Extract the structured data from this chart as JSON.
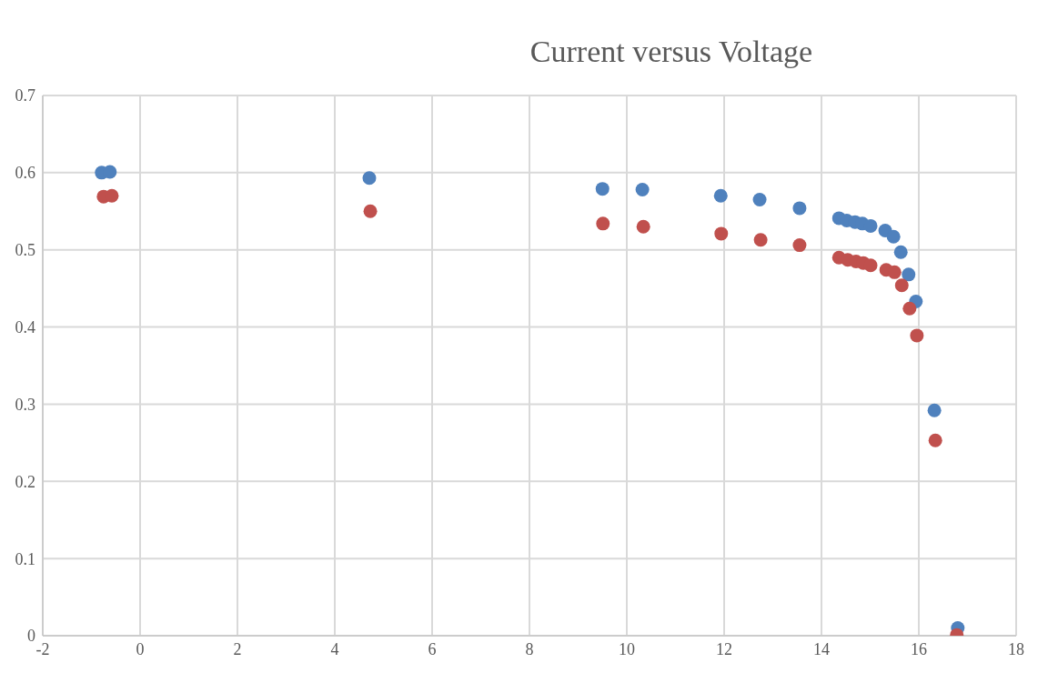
{
  "chart_data": {
    "type": "scatter",
    "title": "Current versus Voltage",
    "xlim": [
      -2,
      18
    ],
    "xticks": [
      -2,
      0,
      2,
      4,
      6,
      8,
      10,
      12,
      14,
      16,
      18
    ],
    "ylim": [
      0,
      0.7
    ],
    "yticks": [
      0,
      0.1,
      0.2,
      0.3,
      0.4,
      0.5,
      0.6,
      0.7
    ],
    "grid": true,
    "legend": false,
    "marker": "circle",
    "series": [
      {
        "color": "#4f81bd",
        "x": [
          -0.79,
          -0.62,
          4.71,
          9.5,
          10.32,
          11.93,
          12.73,
          13.55,
          14.36,
          14.52,
          14.69,
          14.84,
          15.01,
          15.31,
          15.48,
          15.63,
          15.79,
          15.94,
          16.32,
          16.8
        ],
        "values": [
          0.6,
          0.601,
          0.593,
          0.579,
          0.578,
          0.57,
          0.565,
          0.554,
          0.541,
          0.538,
          0.536,
          0.534,
          0.531,
          0.525,
          0.517,
          0.497,
          0.468,
          0.433,
          0.292,
          0.01
        ]
      },
      {
        "color": "#c0504d",
        "x": [
          -0.75,
          -0.58,
          4.73,
          9.51,
          10.34,
          11.94,
          12.75,
          13.55,
          14.36,
          14.54,
          14.71,
          14.86,
          15.01,
          15.33,
          15.5,
          15.65,
          15.81,
          15.96,
          16.34,
          16.78
        ],
        "values": [
          0.569,
          0.57,
          0.55,
          0.534,
          0.53,
          0.521,
          0.513,
          0.506,
          0.49,
          0.487,
          0.485,
          0.483,
          0.48,
          0.474,
          0.471,
          0.454,
          0.424,
          0.389,
          0.253,
          0.001
        ]
      }
    ]
  }
}
